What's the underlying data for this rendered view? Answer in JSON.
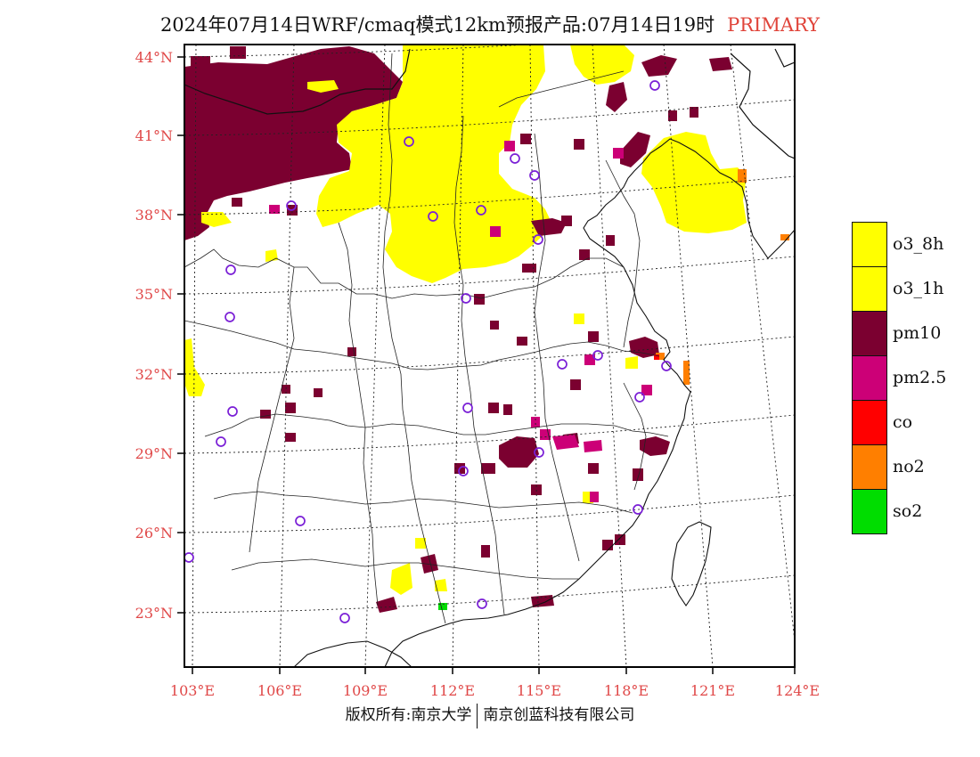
{
  "title": {
    "main": "2024年07月14日WRF/cmaq模式12km预报产品:07月14日19时",
    "tag": "PRIMARY"
  },
  "map": {
    "lat_labels": [
      "44°N",
      "41°N",
      "38°N",
      "35°N",
      "32°N",
      "29°N",
      "26°N",
      "23°N"
    ],
    "lon_labels": [
      "103°E",
      "106°E",
      "109°E",
      "112°E",
      "115°E",
      "118°E",
      "121°E",
      "124°E"
    ],
    "label_color": "#e04848"
  },
  "legend": {
    "items": [
      {
        "label": "o3_8h",
        "color": "#ffff00"
      },
      {
        "label": "o3_1h",
        "color": "#ffff00"
      },
      {
        "label": "pm10",
        "color": "#7b0030"
      },
      {
        "label": "pm2.5",
        "color": "#cc0077"
      },
      {
        "label": "co",
        "color": "#ff0000"
      },
      {
        "label": "no2",
        "color": "#ff7f00"
      },
      {
        "label": "so2",
        "color": "#00dd00"
      }
    ]
  },
  "copyright": {
    "left": "版权所有:南京大学",
    "right": "南京创蓝科技有限公司"
  }
}
